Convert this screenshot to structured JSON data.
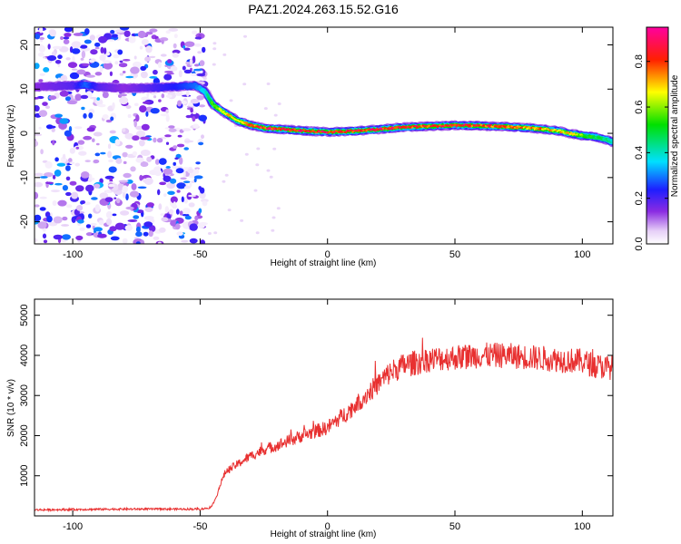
{
  "title": "PAZ1.2024.263.15.52.G16",
  "chart_data": [
    {
      "type": "heatmap",
      "xlabel": "Height of straight line (km)",
      "ylabel": "Frequency (Hz)",
      "xlim": [
        -115,
        112
      ],
      "ylim": [
        -25,
        24
      ],
      "xticks": [
        -100,
        -50,
        0,
        50,
        100
      ],
      "yticks": [
        -20,
        -10,
        0,
        10,
        20
      ],
      "colorbar": {
        "label": "Normalized spectral amplitude",
        "range": [
          0,
          0.95
        ],
        "ticks": [
          0.0,
          0.2,
          0.4,
          0.6,
          0.8
        ],
        "colormap": "rainbow (white-violet-blue-cyan-green-yellow-red-magenta)"
      },
      "ridge": {
        "x": [
          -115,
          -100,
          -95,
          -90,
          -80,
          -70,
          -60,
          -52,
          -48,
          -45,
          -40,
          -35,
          -30,
          -25,
          -20,
          -10,
          0,
          10,
          20,
          30,
          40,
          50,
          60,
          70,
          80,
          90,
          95,
          100,
          105,
          110,
          112
        ],
        "freq": [
          10.5,
          10.8,
          11.0,
          10.5,
          10.2,
          10.3,
          10.5,
          10.8,
          9.5,
          6.5,
          4.5,
          2.8,
          1.8,
          1.2,
          1.0,
          0.6,
          0.3,
          0.5,
          0.9,
          1.4,
          1.6,
          1.8,
          1.7,
          1.5,
          1.2,
          0.6,
          0.0,
          -0.5,
          -0.8,
          -1.5,
          -2.0
        ],
        "amplitude": [
          0.15,
          0.2,
          0.3,
          0.2,
          0.15,
          0.2,
          0.25,
          0.3,
          0.4,
          0.6,
          0.7,
          0.8,
          0.85,
          0.9,
          0.9,
          0.92,
          0.9,
          0.92,
          0.9,
          0.9,
          0.88,
          0.9,
          0.85,
          0.85,
          0.8,
          0.75,
          0.7,
          0.6,
          0.5,
          0.45,
          0.4
        ]
      },
      "noise_region_x": [
        -115,
        -48
      ],
      "noise_amplitude_range": [
        0.02,
        0.35
      ]
    },
    {
      "type": "line",
      "xlabel": "Height of straight line (km)",
      "ylabel": "SNR (10 * v/v)",
      "xlim": [
        -115,
        112
      ],
      "ylim": [
        0,
        5400
      ],
      "xticks": [
        -100,
        -50,
        0,
        50,
        100
      ],
      "yticks": [
        1000,
        2000,
        3000,
        4000,
        5000
      ],
      "series": [
        {
          "color": "#e83030",
          "x": [
            -115,
            -100,
            -80,
            -60,
            -50,
            -46,
            -44,
            -42,
            -40,
            -35,
            -30,
            -25,
            -20,
            -10,
            0,
            5,
            10,
            15,
            20,
            25,
            30,
            40,
            50,
            60,
            70,
            80,
            90,
            100,
            105,
            110,
            112
          ],
          "values": [
            150,
            160,
            170,
            170,
            170,
            200,
            400,
            800,
            1100,
            1300,
            1500,
            1650,
            1750,
            2000,
            2200,
            2450,
            2700,
            3000,
            3300,
            3600,
            3750,
            3900,
            3950,
            4000,
            4000,
            3950,
            3900,
            3850,
            3750,
            3700,
            3700
          ],
          "noise_amplitude": 320
        }
      ]
    }
  ]
}
